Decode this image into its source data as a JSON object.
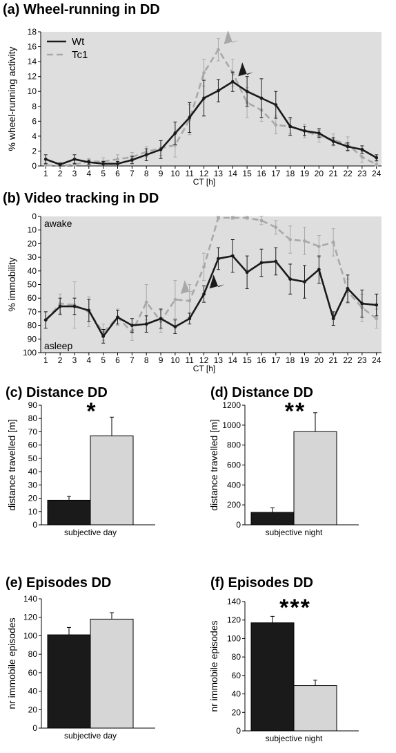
{
  "chart_data": [
    {
      "type": "line",
      "panel": "(a)",
      "title": "(a) Wheel-running in DD",
      "xlabel": "CT [h]",
      "ylabel": "% wheel-running activity",
      "x": [
        1,
        2,
        3,
        4,
        5,
        6,
        7,
        8,
        9,
        10,
        11,
        12,
        13,
        14,
        15,
        16,
        17,
        18,
        19,
        20,
        21,
        22,
        23,
        24
      ],
      "ylim": [
        0,
        18
      ],
      "yticks": [
        0,
        2,
        4,
        6,
        8,
        10,
        12,
        14,
        16,
        18
      ],
      "grid": false,
      "legend_position": "top-left",
      "series": [
        {
          "name": "Wt",
          "color": "#1a1a1a",
          "style": "solid",
          "values": [
            0.9,
            0.2,
            0.9,
            0.5,
            0.3,
            0.3,
            0.8,
            1.5,
            2.2,
            4.4,
            6.5,
            9.1,
            10.1,
            11.3,
            10.0,
            9.1,
            8.2,
            5.3,
            4.7,
            4.4,
            3.3,
            2.6,
            2.2,
            1.1
          ],
          "errors": [
            0.6,
            0.2,
            0.6,
            0.3,
            0.3,
            0.3,
            0.5,
            0.8,
            1.2,
            1.5,
            2.0,
            2.4,
            1.5,
            1.3,
            2.0,
            2.6,
            1.8,
            1.2,
            0.6,
            0.6,
            0.5,
            0.5,
            0.5,
            0.4
          ]
        },
        {
          "name": "Tc1",
          "color": "#a8a8a8",
          "style": "dashed",
          "values": [
            0.1,
            0.0,
            0.2,
            0.6,
            0.6,
            0.9,
            1.2,
            1.9,
            2.4,
            2.8,
            6.2,
            12.5,
            15.6,
            12.5,
            8.5,
            7.5,
            5.5,
            5.3,
            4.7,
            4.0,
            3.5,
            2.9,
            1.2,
            0.2
          ],
          "errors": [
            0.3,
            0.2,
            0.3,
            0.4,
            0.5,
            0.6,
            0.6,
            0.7,
            1.0,
            1.6,
            2.0,
            1.8,
            1.5,
            1.8,
            2.0,
            1.5,
            1.2,
            1.0,
            0.9,
            0.8,
            0.8,
            1.0,
            0.7,
            0.4
          ]
        }
      ],
      "annotations": [
        {
          "target_series": "Tc1",
          "x": 13,
          "description": "grey arrowhead"
        },
        {
          "target_series": "Wt",
          "x": 14,
          "description": "black arrowhead"
        }
      ]
    },
    {
      "type": "line",
      "panel": "(b)",
      "title": "(b) Video tracking in DD",
      "xlabel": "CT [h]",
      "ylabel": "% immobility",
      "x": [
        1,
        2,
        3,
        4,
        5,
        6,
        7,
        8,
        9,
        10,
        11,
        12,
        13,
        14,
        15,
        16,
        17,
        18,
        19,
        20,
        21,
        22,
        23,
        24
      ],
      "ylim": [
        100,
        0
      ],
      "yticks": [
        0,
        10,
        20,
        30,
        40,
        50,
        60,
        70,
        80,
        90,
        100
      ],
      "y_inverted": true,
      "top_label": "awake",
      "bottom_label": "asleep",
      "grid": false,
      "series": [
        {
          "name": "Wt",
          "color": "#1a1a1a",
          "style": "solid",
          "values": [
            76,
            66,
            66,
            69,
            88,
            74,
            80,
            79,
            75,
            81,
            75,
            57,
            31,
            29,
            41,
            34,
            33,
            46,
            48,
            39,
            75,
            53,
            64,
            65
          ],
          "errors": [
            6,
            6,
            6,
            8,
            5,
            5,
            5,
            6,
            7,
            5,
            4,
            6,
            8,
            12,
            12,
            10,
            10,
            11,
            12,
            10,
            5,
            10,
            10,
            8
          ]
        },
        {
          "name": "Tc1",
          "color": "#a8a8a8",
          "style": "dashed",
          "values": [
            76,
            64,
            65,
            70,
            85,
            74,
            85,
            63,
            77,
            61,
            62,
            37,
            1,
            1,
            1,
            3,
            8,
            17,
            18,
            22,
            19,
            55,
            67,
            75
          ],
          "errors": [
            6,
            7,
            17,
            11,
            6,
            6,
            6,
            13,
            8,
            14,
            12,
            10,
            1,
            1,
            1,
            3,
            5,
            10,
            10,
            8,
            10,
            9,
            10,
            7
          ]
        }
      ],
      "annotations": [
        {
          "target_series": "Tc1",
          "x": 10,
          "description": "grey arrowhead"
        },
        {
          "target_series": "Wt",
          "x": 12,
          "description": "black arrowhead"
        }
      ]
    },
    {
      "type": "bar",
      "panel": "(c)",
      "title": "(c) Distance DD",
      "xlabel": "subjective day",
      "ylabel": "distance travelled [m]",
      "ylim": [
        0,
        90
      ],
      "yticks": [
        0,
        10,
        20,
        30,
        40,
        50,
        60,
        70,
        80,
        90
      ],
      "significance": "*",
      "series": [
        {
          "name": "Wt",
          "color": "#1a1a1a",
          "values": [
            18.5
          ],
          "errors": [
            3
          ]
        },
        {
          "name": "Tc1",
          "color": "#d6d6d6",
          "values": [
            67
          ],
          "errors": [
            14
          ]
        }
      ]
    },
    {
      "type": "bar",
      "panel": "(d)",
      "title": "(d) Distance DD",
      "xlabel": "subjective night",
      "ylabel": "distance travelled [m]",
      "ylim": [
        0,
        1200
      ],
      "yticks": [
        0,
        200,
        400,
        600,
        800,
        1000,
        1200
      ],
      "significance": "**",
      "series": [
        {
          "name": "Wt",
          "color": "#1a1a1a",
          "values": [
            125
          ],
          "errors": [
            45
          ]
        },
        {
          "name": "Tc1",
          "color": "#d6d6d6",
          "values": [
            935
          ],
          "errors": [
            190
          ]
        }
      ]
    },
    {
      "type": "bar",
      "panel": "(e)",
      "title": "(e) Episodes DD",
      "xlabel": "subjective day",
      "ylabel": "nr immobile episodes",
      "ylim": [
        0,
        140
      ],
      "yticks": [
        0,
        20,
        40,
        60,
        80,
        100,
        120,
        140
      ],
      "significance": "",
      "series": [
        {
          "name": "Wt",
          "color": "#1a1a1a",
          "values": [
            101
          ],
          "errors": [
            8
          ]
        },
        {
          "name": "Tc1",
          "color": "#d6d6d6",
          "values": [
            118
          ],
          "errors": [
            7
          ]
        }
      ]
    },
    {
      "type": "bar",
      "panel": "(f)",
      "title": "(f) Episodes DD",
      "xlabel": "subjective night",
      "ylabel": "nr immobile episodes",
      "ylim": [
        0,
        140
      ],
      "yticks": [
        0,
        20,
        40,
        60,
        80,
        100,
        120,
        140
      ],
      "significance": "***",
      "series": [
        {
          "name": "Wt",
          "color": "#1a1a1a",
          "values": [
            117
          ],
          "errors": [
            7
          ]
        },
        {
          "name": "Tc1",
          "color": "#d6d6d6",
          "values": [
            49
          ],
          "errors": [
            6
          ]
        }
      ]
    }
  ]
}
